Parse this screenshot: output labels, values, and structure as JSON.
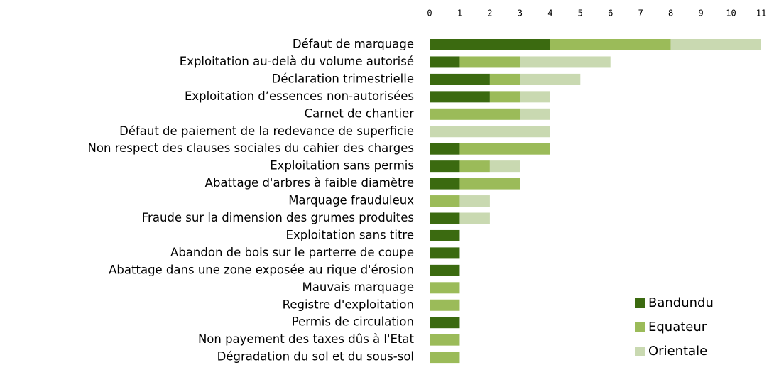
{
  "chart_data": {
    "type": "bar",
    "orientation": "horizontal",
    "stacked": true,
    "categories": [
      "Défaut de marquage",
      "Exploitation au-delà du volume autorisé",
      "Déclaration trimestrielle",
      "Exploitation d’essences non-autorisées",
      "Carnet de chantier",
      "Défaut de paiement de la redevance de superficie",
      "Non respect des clauses sociales du cahier des charges",
      "Exploitation sans permis",
      "Abattage d'arbres à faible diamètre",
      "Marquage frauduleux",
      "Fraude sur la dimension des grumes produites",
      "Exploitation sans titre",
      "Abandon de bois sur le parterre de coupe",
      "Abattage dans une zone exposée au rique d'érosion",
      "Mauvais marquage",
      "Registre d'exploitation",
      "Permis de circulation",
      "Non payement des taxes dûs à l'Etat",
      "Dégradation du sol et du sous-sol"
    ],
    "series": [
      {
        "name": "Bandundu",
        "color": "#3b6a10",
        "values": [
          4,
          1,
          2,
          2,
          0,
          0,
          1,
          1,
          1,
          0,
          1,
          1,
          1,
          1,
          0,
          0,
          1,
          0,
          0
        ]
      },
      {
        "name": "Equateur",
        "color": "#9bbb59",
        "values": [
          4,
          2,
          1,
          1,
          3,
          0,
          3,
          1,
          2,
          1,
          0,
          0,
          0,
          0,
          1,
          1,
          0,
          1,
          1
        ]
      },
      {
        "name": "Orientale",
        "color": "#c9d9b1",
        "values": [
          3,
          3,
          2,
          1,
          1,
          4,
          0,
          1,
          0,
          1,
          1,
          0,
          0,
          0,
          0,
          0,
          0,
          0,
          0
        ]
      }
    ],
    "xlim": [
      0,
      11
    ],
    "xticks": [
      0,
      1,
      2,
      3,
      4,
      5,
      6,
      7,
      8,
      9,
      10,
      11
    ],
    "grid": false,
    "legend": "lower right"
  }
}
